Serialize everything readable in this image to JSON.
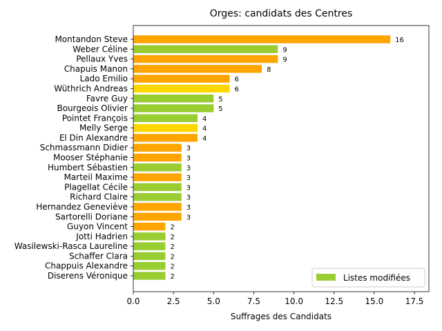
{
  "chart_data": {
    "type": "bar",
    "orientation": "horizontal",
    "title": "Orges: candidats des Centres",
    "xlabel": "Suffrages des Candidats",
    "ylabel": "",
    "xlim": [
      0,
      18.4
    ],
    "x_ticks": [
      "0.0",
      "2.5",
      "5.0",
      "7.5",
      "10.0",
      "12.5",
      "15.0",
      "17.5"
    ],
    "x_tick_values": [
      0,
      2.5,
      5,
      7.5,
      10,
      12.5,
      15,
      17.5
    ],
    "grid": false,
    "legend_position": "lower right",
    "legend": [
      {
        "label": "Listes modifiées",
        "color": "#9acd32"
      }
    ],
    "categories": [
      "Montandon Steve",
      "Weber Céline",
      "Pellaux Yves",
      "Chapuis Manon",
      "Lado Emilio",
      "Wüthrich Andreas",
      "Favre Guy",
      "Bourgeois Olivier",
      "Pointet François",
      "Melly Serge",
      "El Din Alexandre",
      "Schmassmann Didier",
      "Mooser Stéphanie",
      "Humbert Sébastien",
      "Marteil Maxime",
      "Plagellat Cécile",
      "Richard Claire",
      "Hernandez Geneviève",
      "Sartorelli Doriane",
      "Guyon Vincent",
      "Jotti Hadrien",
      "Wasilewski-Rasca Laureline",
      "Schaffer Clara",
      "Chappuis Alexandre",
      "Diserens Véronique"
    ],
    "values": [
      16,
      9,
      9,
      8,
      6,
      6,
      5,
      5,
      4,
      4,
      4,
      3,
      3,
      3,
      3,
      3,
      3,
      3,
      3,
      2,
      2,
      2,
      2,
      2,
      2
    ],
    "labels": [
      "16",
      "9",
      "9",
      "8",
      "6",
      "6",
      "5",
      "5",
      "4",
      "4",
      "4",
      "3",
      "3",
      "3",
      "3",
      "3",
      "3",
      "3",
      "3",
      "2",
      "2",
      "2",
      "2",
      "2",
      "2"
    ],
    "bar_colors": [
      "#ffa500",
      "#9acd32",
      "#ffa500",
      "#ffa500",
      "#ffa500",
      "#ffd700",
      "#9acd32",
      "#9acd32",
      "#9acd32",
      "#ffd700",
      "#ffa500",
      "#ffa500",
      "#ffa500",
      "#9acd32",
      "#ffa500",
      "#9acd32",
      "#9acd32",
      "#ffa500",
      "#ffa500",
      "#ffa500",
      "#9acd32",
      "#9acd32",
      "#9acd32",
      "#9acd32",
      "#9acd32"
    ]
  }
}
